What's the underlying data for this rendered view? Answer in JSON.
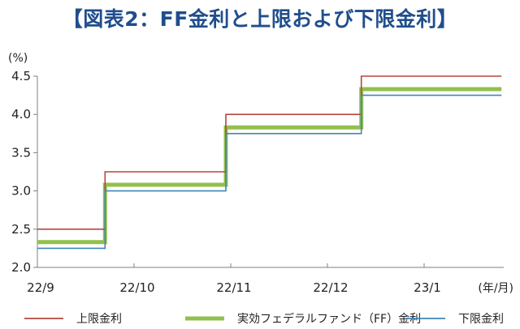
{
  "chart_data": {
    "type": "line",
    "title": "【図表2：FF金利と上限および下限金利】",
    "y_unit_label": "(%)",
    "x_unit_label": "(年/月)",
    "ylim": [
      2.0,
      4.5
    ],
    "y_ticks": [
      "2.0",
      "2.5",
      "3.0",
      "3.5",
      "4.0",
      "4.5"
    ],
    "x_tick_labels": [
      "22/9",
      "22/10",
      "22/11",
      "22/12",
      "23/1"
    ],
    "grid": false,
    "legend_position": "bottom",
    "step_x": [
      0,
      0.7,
      0.7,
      1.95,
      1.95,
      3.35,
      3.35,
      4.8
    ],
    "series": [
      {
        "name": "上限金利",
        "color": "#b5473e",
        "values": [
          2.5,
          2.5,
          3.25,
          3.25,
          4.0,
          4.0,
          4.5,
          4.5
        ]
      },
      {
        "name": "実効フェデラルファンド（FF）金利",
        "color": "#92c04c",
        "values": [
          2.33,
          2.33,
          3.08,
          3.08,
          3.83,
          3.83,
          4.33,
          4.33
        ]
      },
      {
        "name": "下限金利",
        "color": "#3f86b8",
        "values": [
          2.25,
          2.25,
          3.0,
          3.0,
          3.75,
          3.75,
          4.25,
          4.25
        ]
      }
    ]
  }
}
